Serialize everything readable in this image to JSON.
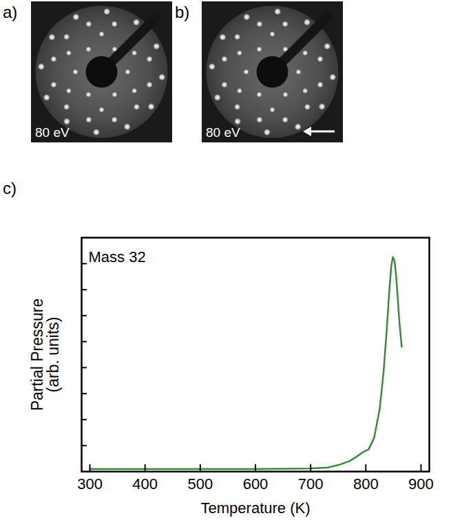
{
  "panels": [
    {
      "label": "a)",
      "energy": "80 eV"
    },
    {
      "label": "b)",
      "energy": "80 eV"
    }
  ],
  "chart_data": {
    "type": "line",
    "panel_label": "c)",
    "title": "Mass 32",
    "x_label": "Temperature (K)",
    "y_label": "Partial Pressure (arb. units)",
    "x": [
      300,
      400,
      500,
      600,
      700,
      730,
      750,
      770,
      785,
      795,
      805,
      815,
      825,
      832,
      838,
      842,
      846,
      849,
      852,
      855,
      858,
      861,
      865
    ],
    "values": [
      0.1,
      0.1,
      0.1,
      0.1,
      0.12,
      0.15,
      0.25,
      0.4,
      0.6,
      0.75,
      0.85,
      1.3,
      2.4,
      3.8,
      5.5,
      6.8,
      7.9,
      8.25,
      8.1,
      7.5,
      6.6,
      5.7,
      4.8
    ],
    "color": "#3a8a3a",
    "xlim": [
      285,
      915
    ],
    "xticks": [
      300,
      400,
      500,
      600,
      700,
      800,
      900
    ],
    "ylim": [
      0,
      9
    ],
    "yticks": [
      1,
      2,
      3,
      4,
      5,
      6,
      7,
      8
    ],
    "tick_labels": "x",
    "grid": false
  }
}
